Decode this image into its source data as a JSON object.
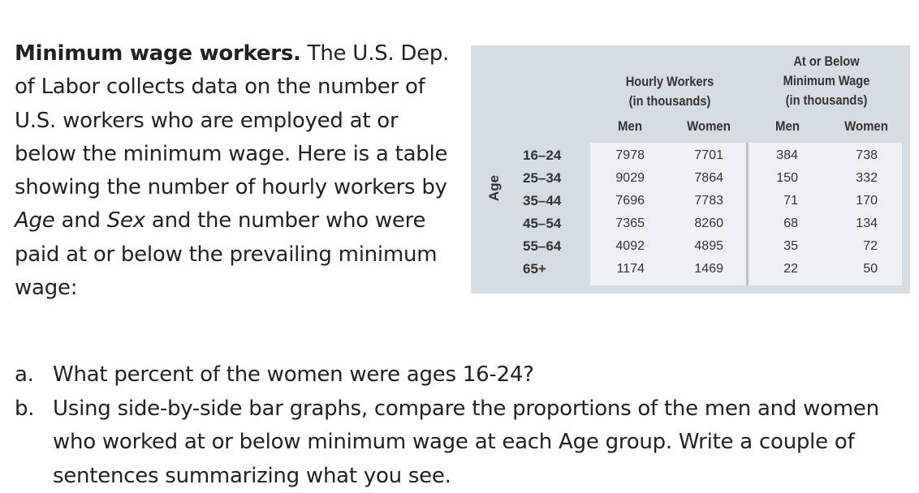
{
  "intro": {
    "title": "Minimum wage workers.",
    "part1": " The U.S. Dep. of Labor collects data on the number of U.S. workers who are employed at or below the minimum wage. Here is a table showing the number of hourly workers by ",
    "age_word": "Age",
    "part2": " and ",
    "sex_word": "Sex",
    "part3": " and the number who were paid at or below the prevailing minimum wage:"
  },
  "table": {
    "group1_header": [
      "Hourly Workers",
      "(in thousands)"
    ],
    "group2_header": [
      "At or Below",
      "Minimum Wage",
      "(in thousands)"
    ],
    "sub_headers": [
      "Men",
      "Women",
      "Men",
      "Women"
    ],
    "row_axis_label": "Age",
    "rows": [
      {
        "age": "16–24",
        "hourly_men": "7978",
        "hourly_women": "7701",
        "min_men": "384",
        "min_women": "738"
      },
      {
        "age": "25–34",
        "hourly_men": "9029",
        "hourly_women": "7864",
        "min_men": "150",
        "min_women": "332"
      },
      {
        "age": "35–44",
        "hourly_men": "7696",
        "hourly_women": "7783",
        "min_men": "71",
        "min_women": "170"
      },
      {
        "age": "45–54",
        "hourly_men": "7365",
        "hourly_women": "8260",
        "min_men": "68",
        "min_women": "134"
      },
      {
        "age": "55–64",
        "hourly_men": "4092",
        "hourly_women": "4895",
        "min_men": "35",
        "min_women": "72"
      },
      {
        "age": "65+",
        "hourly_men": "1174",
        "hourly_women": "1469",
        "min_men": "22",
        "min_women": "50"
      }
    ]
  },
  "questions": [
    {
      "marker": "a.",
      "text": "What percent of the women were ages 16-24?"
    },
    {
      "marker": "b.",
      "text": "Using side-by-side bar graphs, compare the proportions of the men and women who worked at or below minimum wage at each Age group. Write a couple of sentences summarizing what you see."
    }
  ],
  "colors": {
    "panel_background": "#d6dde2",
    "data_background": "#eef1f3",
    "divider": "#b9c2c8"
  }
}
